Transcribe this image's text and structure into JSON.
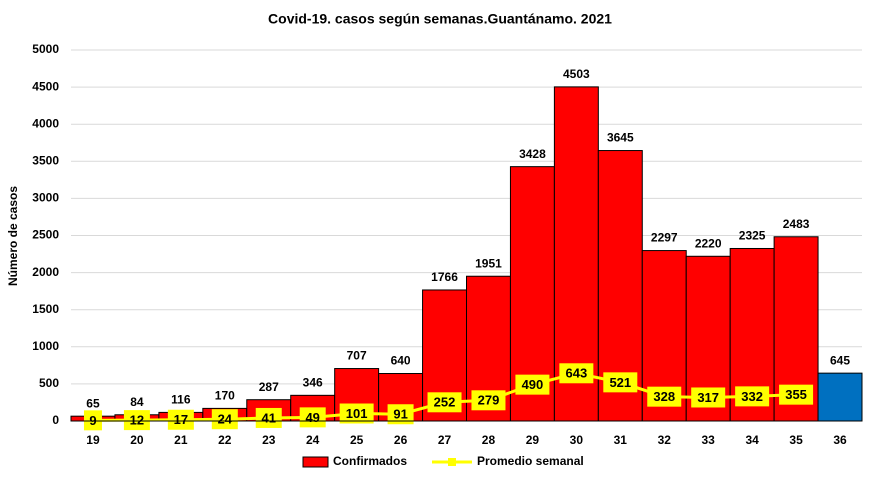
{
  "chart_data": {
    "type": "bar",
    "title": "Covid-19. casos según semanas.Guantánamo. 2021",
    "y_label": "Número de casos",
    "categories": [
      "19",
      "20",
      "21",
      "22",
      "23",
      "24",
      "25",
      "26",
      "27",
      "28",
      "29",
      "30",
      "31",
      "32",
      "33",
      "34",
      "35",
      "36"
    ],
    "series": [
      {
        "name": "Confirmados",
        "type": "bar",
        "color": "#ff0000",
        "colors": [
          "#ff0000",
          "#ff0000",
          "#ff0000",
          "#ff0000",
          "#ff0000",
          "#ff0000",
          "#ff0000",
          "#ff0000",
          "#ff0000",
          "#ff0000",
          "#ff0000",
          "#ff0000",
          "#ff0000",
          "#ff0000",
          "#ff0000",
          "#ff0000",
          "#ff0000",
          "#0070c0"
        ],
        "values": [
          65,
          84,
          116,
          170,
          287,
          346,
          707,
          640,
          1766,
          1951,
          3428,
          4503,
          3645,
          2297,
          2220,
          2325,
          2483,
          645
        ]
      },
      {
        "name": "Promedio semanal",
        "type": "line",
        "color": "#ffff00",
        "values": [
          9,
          12,
          17,
          24,
          41,
          49,
          101,
          91,
          252,
          279,
          490,
          643,
          521,
          328,
          317,
          332,
          355,
          null
        ]
      }
    ],
    "ylim": [
      0,
      5000
    ],
    "yticks": [
      0,
      500,
      1000,
      1500,
      2000,
      2500,
      3000,
      3500,
      4000,
      4500,
      5000
    ],
    "grid": true,
    "legend": "bottom"
  }
}
